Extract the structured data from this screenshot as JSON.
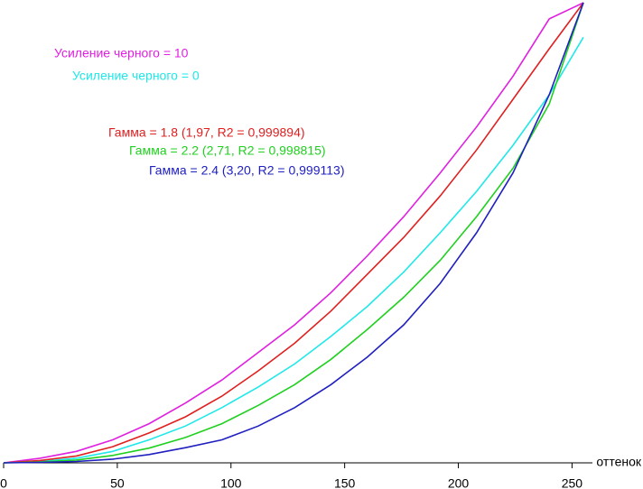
{
  "chart_data": {
    "type": "line",
    "xlabel": "оттенок",
    "x": [
      0,
      16,
      32,
      48,
      64,
      80,
      96,
      112,
      128,
      144,
      160,
      176,
      192,
      208,
      224,
      240,
      255
    ],
    "xlim": [
      0,
      255
    ],
    "xticks": [
      0,
      50,
      100,
      150,
      200,
      250
    ],
    "ylim": [
      0,
      1
    ],
    "series": [
      {
        "name": "Усиление черного = 10",
        "color": "#e020e0",
        "values": [
          0,
          0.01,
          0.025,
          0.05,
          0.085,
          0.13,
          0.18,
          0.24,
          0.3,
          0.37,
          0.45,
          0.535,
          0.63,
          0.73,
          0.84,
          0.965,
          1
        ]
      },
      {
        "name": "Усиление черного = 0",
        "color": "#20e8e8",
        "values": [
          0,
          0.003,
          0.01,
          0.025,
          0.05,
          0.08,
          0.12,
          0.165,
          0.215,
          0.275,
          0.34,
          0.415,
          0.5,
          0.59,
          0.69,
          0.8,
          0.925
        ]
      },
      {
        "name": "Гамма = 1.8 (1,97, R2 = 0,999894)",
        "color": "#e02020",
        "values": [
          0,
          0.005,
          0.015,
          0.035,
          0.065,
          0.1,
          0.145,
          0.2,
          0.26,
          0.33,
          0.41,
          0.49,
          0.58,
          0.68,
          0.79,
          0.9,
          1
        ]
      },
      {
        "name": "Гамма = 2.2 (2,71, R2 = 0,998815)",
        "color": "#20d020",
        "values": [
          0,
          0.002,
          0.006,
          0.016,
          0.032,
          0.055,
          0.085,
          0.125,
          0.17,
          0.225,
          0.29,
          0.36,
          0.44,
          0.535,
          0.64,
          0.78,
          1
        ]
      },
      {
        "name": "Гамма = 2.4 (3,20, R2 = 0,999113)",
        "color": "#2020c0",
        "values": [
          0,
          0.001,
          0.003,
          0.008,
          0.018,
          0.033,
          0.05,
          0.08,
          0.12,
          0.17,
          0.23,
          0.3,
          0.39,
          0.5,
          0.63,
          0.8,
          1
        ]
      }
    ]
  }
}
